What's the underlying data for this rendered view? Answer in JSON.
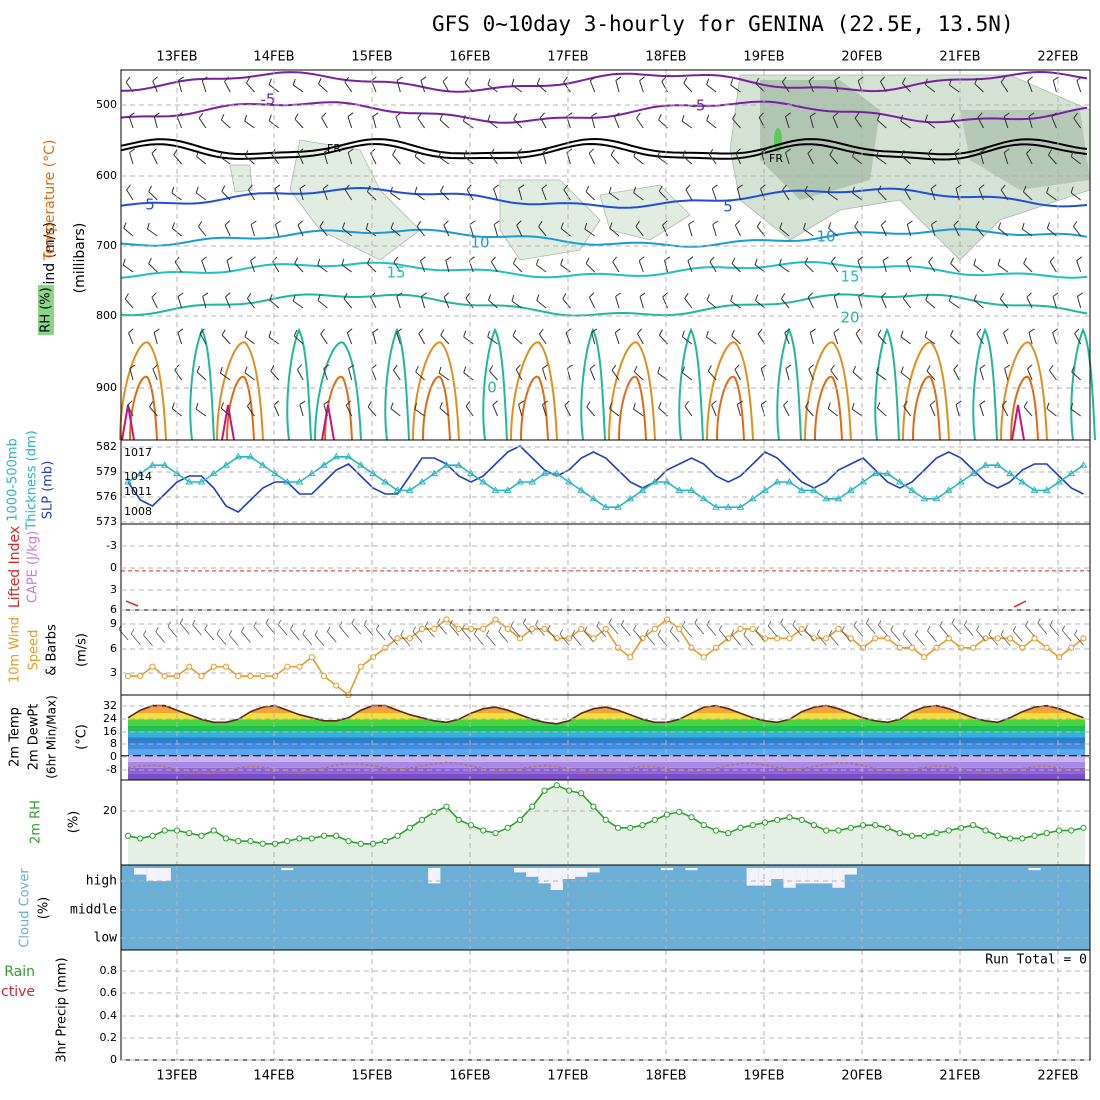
{
  "title": "GFS 0~10day 3-hourly for GENINA (22.5E, 13.5N)",
  "dates": [
    "13FEB",
    "14FEB",
    "15FEB",
    "16FEB",
    "17FEB",
    "18FEB",
    "19FEB",
    "20FEB",
    "21FEB",
    "22FEB"
  ],
  "colors": {
    "grid": "#b4b4b4",
    "frame": "#000000",
    "rh": "#2ca02c",
    "slp": "#1f3fbf",
    "thick": "#2ab5c0",
    "wind": "#e89a2a",
    "cloud": "#6baed6",
    "li": "#d62728",
    "cape": "#c77cd6"
  },
  "panels": {
    "upper": {
      "labels": [
        "Wind (m/s)",
        "Temperature (°C)",
        "RH (%)"
      ],
      "axis": "(millibars)",
      "ticks": [
        "500",
        "600",
        "700",
        "800",
        "900"
      ],
      "contour_labels": [
        "-5",
        "-5",
        "5",
        "5",
        "10",
        "10",
        "15",
        "15",
        "20",
        "0",
        "FR",
        "FR"
      ]
    },
    "slp": {
      "labels": [
        "1000-500mb",
        "Thickness (dm)",
        "SLP (mb)"
      ],
      "left_ticks": [
        "582",
        "579",
        "576",
        "573"
      ],
      "right_ticks": [
        "1017",
        "1014",
        "1011",
        "1008"
      ]
    },
    "li": {
      "labels": [
        "Lifted Index",
        "CAPE (J/kg)"
      ],
      "ticks": [
        "-3",
        "0",
        "3",
        "6"
      ]
    },
    "wind10": {
      "labels": [
        "10m Wind",
        "Speed",
        "& Barbs"
      ],
      "unit": "(m/s)",
      "ticks": [
        "9",
        "6",
        "3"
      ]
    },
    "temp2m": {
      "labels": [
        "2m Temp",
        "2m DewPt",
        "(6hr Min/Max)"
      ],
      "unit": "(°C)",
      "ticks": [
        "32",
        "24",
        "16",
        "8",
        "0",
        "-8"
      ]
    },
    "rh2m": {
      "labels": [
        "2m RH"
      ],
      "unit": "(%)",
      "ticks": [
        "20"
      ]
    },
    "cloud": {
      "labels": [
        "Cloud Cover"
      ],
      "unit": "(%)",
      "ticks": [
        "high",
        "middle",
        "low"
      ]
    },
    "precip": {
      "labels": [
        "tal / Rain",
        "Convective"
      ],
      "axis": "3hr Precip (mm)",
      "ticks": [
        "0.8",
        "0.6",
        "0.4",
        "0.2",
        "0"
      ],
      "run_total": "Run Total = 0"
    }
  },
  "chart_data": [
    {
      "type": "line",
      "title": "SLP (mb)",
      "x_step_hours": 3,
      "start": "12FEB 12Z",
      "ylim": [
        1005,
        1019
      ],
      "values": [
        1012,
        1009,
        1008,
        1010,
        1012,
        1013,
        1013,
        1011,
        1008,
        1007,
        1009,
        1011,
        1012,
        1012,
        1010,
        1010,
        1012,
        1014,
        1015,
        1013,
        1011,
        1010,
        1010,
        1013,
        1016,
        1016,
        1015,
        1013,
        1012,
        1013,
        1015,
        1017,
        1018,
        1016,
        1014,
        1013,
        1014,
        1016,
        1017,
        1016,
        1014,
        1012,
        1011,
        1012,
        1014,
        1015,
        1016,
        1015,
        1013,
        1012,
        1013,
        1015,
        1017,
        1016,
        1014,
        1012,
        1011,
        1012,
        1014,
        1015,
        1016,
        1014,
        1012,
        1011,
        1012,
        1014,
        1016,
        1017,
        1016,
        1014,
        1012,
        1011,
        1012,
        1014,
        1015,
        1015,
        1013,
        1011,
        1010,
        1011,
        1013,
        1014,
        1015,
        1014,
        1012,
        1011,
        1010,
        1012,
        1014
      ]
    },
    {
      "type": "line",
      "title": "1000-500mb Thickness (dm)",
      "x_step_hours": 3,
      "ylim": [
        573,
        583
      ],
      "values": [
        578,
        579,
        580,
        580,
        579,
        578,
        578,
        579,
        580,
        581,
        581,
        580,
        579,
        578,
        578,
        579,
        580,
        581,
        581,
        580,
        579,
        578,
        577,
        577,
        578,
        579,
        580,
        580,
        579,
        578,
        577,
        577,
        578,
        578,
        579,
        579,
        578,
        577,
        576,
        575,
        575,
        576,
        577,
        578,
        578,
        577,
        577,
        576,
        575,
        575,
        575,
        576,
        577,
        578,
        578,
        577,
        577,
        576,
        576,
        577,
        578,
        579,
        579,
        578,
        577,
        576,
        576,
        577,
        578,
        579,
        580,
        580,
        579,
        578,
        577,
        577,
        578,
        579,
        580,
        581,
        581,
        580,
        579,
        578,
        578,
        579,
        580,
        581,
        581,
        580,
        579,
        578,
        577
      ]
    },
    {
      "type": "line",
      "title": "10m Wind Speed (m/s)",
      "x_step_hours": 3,
      "ylim": [
        1,
        10
      ],
      "values": [
        3,
        3,
        4,
        3,
        3,
        4,
        3,
        4,
        4,
        3,
        3,
        3,
        3,
        4,
        4,
        5,
        3,
        2,
        1,
        4,
        5,
        6,
        7,
        7,
        8,
        8,
        9,
        8,
        8,
        8,
        9,
        8,
        7,
        8,
        8,
        7,
        7,
        8,
        7,
        8,
        6,
        5,
        7,
        8,
        9,
        8,
        6,
        5,
        6,
        7,
        8,
        8,
        7,
        7,
        7,
        8,
        7,
        7,
        8,
        7,
        6,
        7,
        7,
        6,
        6,
        5,
        6,
        7,
        6,
        6,
        7,
        7,
        7,
        6,
        7,
        6,
        5,
        6,
        7,
        7,
        6,
        5,
        5,
        6,
        7,
        8,
        8,
        9
      ]
    },
    {
      "type": "line",
      "title": "2m RH (%)",
      "x_step_hours": 3,
      "ylim": [
        0,
        32
      ],
      "values": [
        11,
        10,
        11,
        13,
        13,
        12,
        11,
        13,
        10,
        9,
        9,
        8,
        8,
        9,
        10,
        10,
        11,
        11,
        9,
        8,
        8,
        9,
        11,
        14,
        17,
        20,
        22,
        17,
        15,
        13,
        12,
        14,
        17,
        22,
        28,
        30,
        28,
        27,
        22,
        17,
        14,
        14,
        15,
        17,
        19,
        20,
        18,
        15,
        13,
        12,
        14,
        15,
        16,
        17,
        18,
        17,
        15,
        13,
        13,
        14,
        15,
        15,
        14,
        12,
        11,
        11,
        12,
        13,
        14,
        15,
        13,
        11,
        10,
        10,
        11,
        12,
        13,
        13,
        14,
        13,
        12,
        11,
        10,
        10,
        11,
        12,
        12,
        13,
        14
      ]
    },
    {
      "type": "line",
      "title": "2m Temp (°C)",
      "x_step_hours": 3,
      "ylim": [
        -16,
        40
      ],
      "values": [
        25,
        30,
        33,
        33,
        30,
        27,
        24,
        22,
        22,
        24,
        29,
        32,
        33,
        30,
        27,
        25,
        23,
        23,
        25,
        30,
        33,
        33,
        30,
        27,
        25,
        23,
        22,
        24,
        28,
        31,
        32,
        30,
        27,
        24,
        22,
        21,
        23,
        28,
        31,
        32,
        30,
        27,
        24,
        22,
        22,
        24,
        28,
        32,
        33,
        31,
        28,
        25,
        23,
        22,
        24,
        29,
        32,
        33,
        31,
        28,
        25,
        23,
        22,
        24,
        29,
        32,
        33,
        31,
        28,
        25,
        23,
        22,
        25,
        29,
        32,
        33,
        31,
        28,
        25,
        23,
        22,
        25,
        30,
        34,
        34,
        31,
        28,
        25,
        23
      ]
    },
    {
      "type": "bar",
      "title": "Cloud Cover (%) high",
      "x_step_hours": 3,
      "ylim": [
        0,
        100
      ],
      "values": [
        0,
        30,
        60,
        60,
        0,
        0,
        0,
        0,
        0,
        0,
        0,
        0,
        0,
        10,
        0,
        0,
        0,
        0,
        0,
        0,
        0,
        0,
        0,
        0,
        0,
        70,
        0,
        0,
        0,
        0,
        0,
        0,
        20,
        40,
        70,
        100,
        50,
        40,
        20,
        0,
        0,
        0,
        0,
        0,
        10,
        0,
        10,
        0,
        0,
        0,
        0,
        80,
        80,
        50,
        90,
        70,
        70,
        70,
        90,
        30,
        0,
        0,
        0,
        0,
        0,
        0,
        0,
        0,
        0,
        0,
        0,
        0,
        0,
        0,
        10,
        0,
        0,
        0,
        0,
        0,
        0,
        0,
        0,
        0,
        0,
        90,
        90,
        40,
        80,
        70,
        100,
        100
      ]
    }
  ]
}
